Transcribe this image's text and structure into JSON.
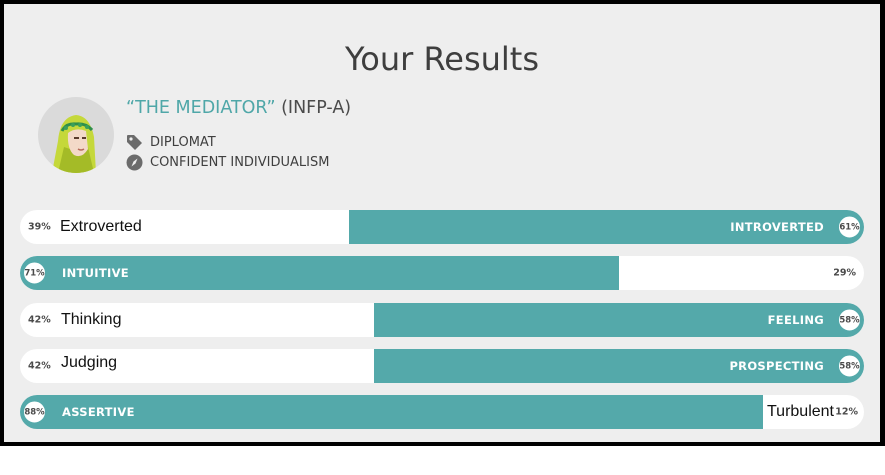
{
  "page": {
    "title": "Your Results"
  },
  "profile": {
    "avatar_icon": "mediator-avatar-icon",
    "type_name": "“THE MEDIATOR”",
    "type_code": "(INFP-A)",
    "role_icon": "tag-icon",
    "role": "DIPLOMAT",
    "strategy_icon": "compass-icon",
    "strategy": "CONFIDENT INDIVIDUALISM"
  },
  "colors": {
    "accent": "#54a9aa",
    "background": "#eeeeee",
    "track": "#ffffff",
    "title": "#3e3e3e"
  },
  "traits": [
    {
      "left_label": "Extroverted",
      "left_pct": "39%",
      "right_label": "INTROVERTED",
      "right_pct": "61%",
      "dominant": "right",
      "fraction": 0.61
    },
    {
      "left_label": "INTUITIVE",
      "left_pct": "71%",
      "right_label": "",
      "right_pct": "29%",
      "dominant": "left",
      "fraction": 0.71
    },
    {
      "left_label": "Thinking",
      "left_pct": "42%",
      "right_label": "FEELING",
      "right_pct": "58%",
      "dominant": "right",
      "fraction": 0.58
    },
    {
      "left_label": "Judging",
      "left_pct": "42%",
      "right_label": "PROSPECTING",
      "right_pct": "58%",
      "dominant": "right",
      "fraction": 0.58
    },
    {
      "left_label": "ASSERTIVE",
      "left_pct": "88%",
      "right_label": "Turbulent",
      "right_pct": "12%",
      "dominant": "left",
      "fraction": 0.88
    }
  ]
}
